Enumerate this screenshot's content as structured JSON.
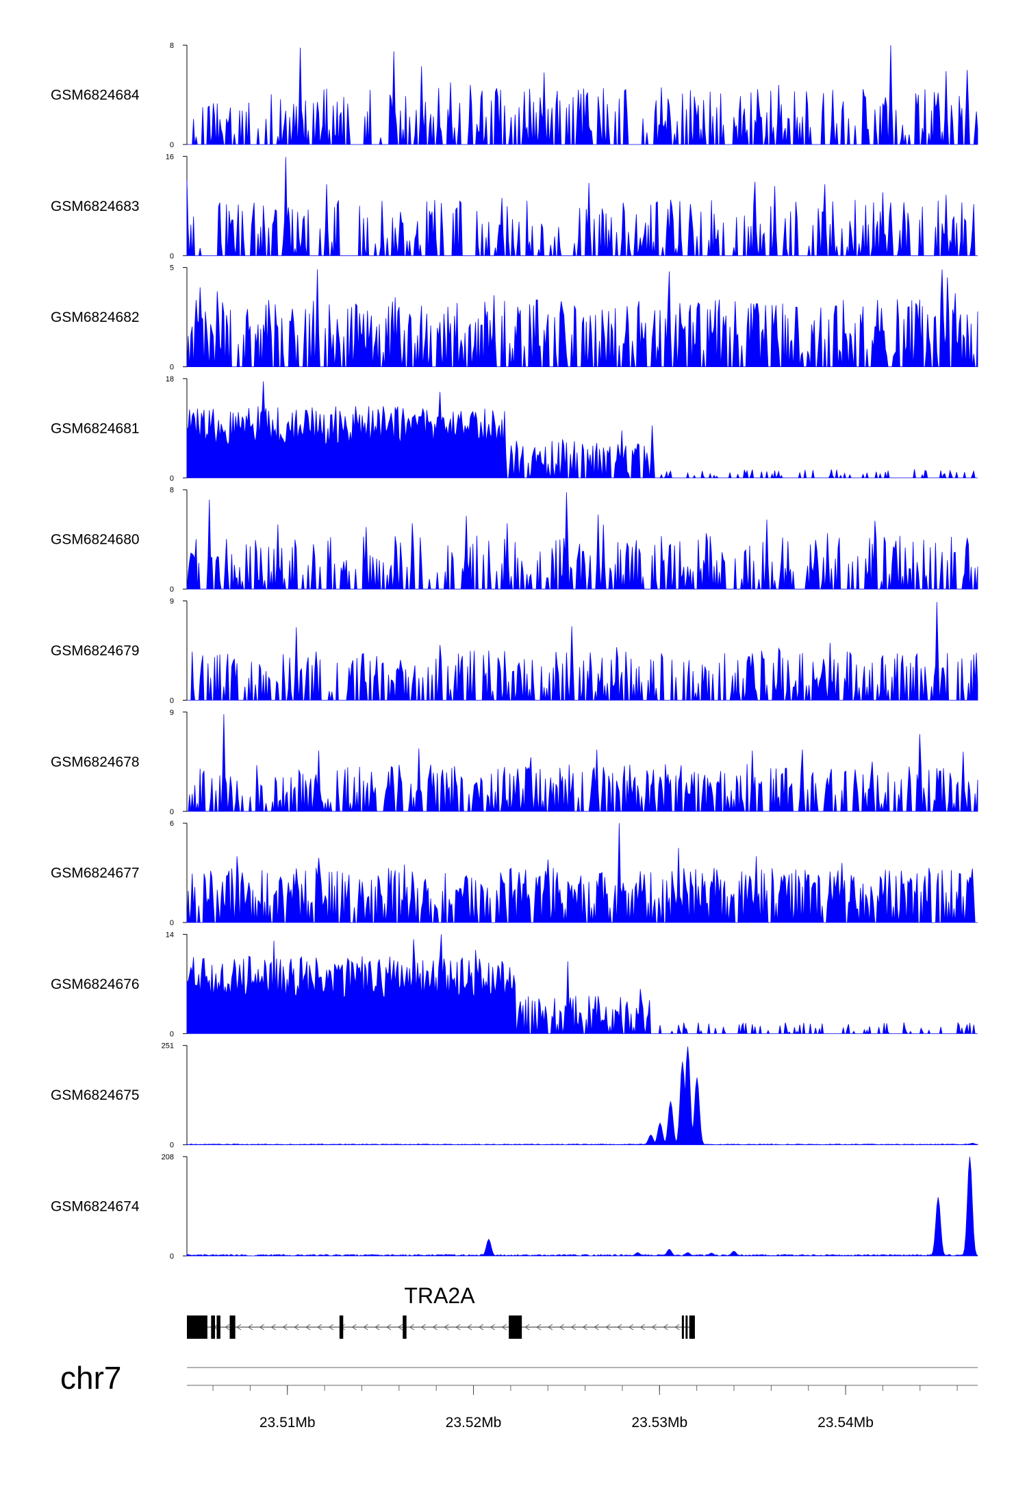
{
  "chart_data": {
    "type": "area",
    "region": {
      "chrom": "chr7",
      "start_mb": 23.5046,
      "end_mb": 23.5471
    },
    "color": "#0000ff",
    "tracks": [
      {
        "name": "GSM6824684",
        "ylim": [
          0,
          8
        ],
        "y_ticks": [
          "0",
          "8"
        ],
        "profile": "sparse",
        "peaks": [
          [
            23.5107,
            7.8
          ],
          [
            23.5157,
            7.5
          ],
          [
            23.5172,
            6.3
          ],
          [
            23.5188,
            5.0
          ],
          [
            23.5198,
            4.8
          ],
          [
            23.5238,
            5.8
          ],
          [
            23.5261,
            4.2
          ],
          [
            23.5301,
            4.6
          ],
          [
            23.5364,
            4.8
          ],
          [
            23.5393,
            4.4
          ],
          [
            23.5424,
            8.2
          ],
          [
            23.5454,
            5.9
          ],
          [
            23.5465,
            6.0
          ]
        ],
        "noise": {
          "density": 0.45,
          "low": 0.5,
          "high": 4.6
        }
      },
      {
        "name": "GSM6824683",
        "ylim": [
          0,
          16
        ],
        "y_ticks": [
          "0",
          "16"
        ],
        "profile": "sparse",
        "peaks": [
          [
            23.5046,
            12.2
          ],
          [
            23.5099,
            15.9
          ],
          [
            23.5121,
            11.5
          ],
          [
            23.5178,
            7.1
          ],
          [
            23.5215,
            9.3
          ],
          [
            23.5262,
            11.7
          ],
          [
            23.5306,
            9.0
          ],
          [
            23.5351,
            11.9
          ],
          [
            23.5362,
            11.2
          ],
          [
            23.5389,
            11.5
          ],
          [
            23.542,
            10.2
          ],
          [
            23.5454,
            9.8
          ],
          [
            23.5468,
            4.3
          ]
        ],
        "noise": {
          "density": 0.38,
          "low": 1.0,
          "high": 9.0
        }
      },
      {
        "name": "GSM6824682",
        "ylim": [
          0,
          5
        ],
        "y_ticks": [
          "0",
          "5"
        ],
        "profile": "sparse",
        "peaks": [
          [
            23.5053,
            4.0
          ],
          [
            23.5062,
            3.8
          ],
          [
            23.5116,
            4.9
          ],
          [
            23.5158,
            3.5
          ],
          [
            23.5211,
            3.6
          ],
          [
            23.5247,
            3.3
          ],
          [
            23.5305,
            4.8
          ],
          [
            23.5311,
            3.2
          ],
          [
            23.5357,
            3.1
          ],
          [
            23.5438,
            3.2
          ],
          [
            23.5452,
            4.9
          ],
          [
            23.5455,
            4.5
          ],
          [
            23.5459,
            3.7
          ]
        ],
        "noise": {
          "density": 0.6,
          "low": 0.5,
          "high": 3.4
        }
      },
      {
        "name": "GSM6824681",
        "ylim": [
          0,
          18
        ],
        "y_ticks": [
          "0",
          "18"
        ],
        "profile": "dense-then-sparse",
        "switch_mb": 23.5216,
        "switch2_mb": 23.5299,
        "peaks": [
          [
            23.506,
            12.5
          ],
          [
            23.5087,
            17.5
          ],
          [
            23.5137,
            13.0
          ],
          [
            23.5182,
            15.6
          ],
          [
            23.5217,
            12.1
          ],
          [
            23.5248,
            7.0
          ],
          [
            23.528,
            8.6
          ],
          [
            23.5296,
            9.5
          ]
        ],
        "noise": {
          "density": 1.0,
          "low": 6.0,
          "high": 13.0
        }
      },
      {
        "name": "GSM6824680",
        "ylim": [
          0,
          8
        ],
        "y_ticks": [
          "0",
          "8"
        ],
        "profile": "sparse",
        "peaks": [
          [
            23.5058,
            7.2
          ],
          [
            23.5095,
            5.2
          ],
          [
            23.5142,
            5.0
          ],
          [
            23.5167,
            5.3
          ],
          [
            23.5196,
            5.9
          ],
          [
            23.5218,
            5.3
          ],
          [
            23.525,
            7.8
          ],
          [
            23.5267,
            6.0
          ],
          [
            23.527,
            5.2
          ],
          [
            23.5305,
            3.5
          ],
          [
            23.5325,
            4.5
          ],
          [
            23.5358,
            5.6
          ],
          [
            23.539,
            4.5
          ],
          [
            23.5416,
            5.5
          ]
        ],
        "noise": {
          "density": 0.45,
          "low": 0.6,
          "high": 4.3
        }
      },
      {
        "name": "GSM6824679",
        "ylim": [
          0,
          9
        ],
        "y_ticks": [
          "0",
          "9"
        ],
        "profile": "sparse",
        "peaks": [
          [
            23.5105,
            6.6
          ],
          [
            23.5182,
            5.0
          ],
          [
            23.5253,
            6.7
          ],
          [
            23.5277,
            4.8
          ],
          [
            23.5364,
            4.7
          ],
          [
            23.5392,
            5.2
          ],
          [
            23.5449,
            8.9
          ],
          [
            23.547,
            4.3
          ]
        ],
        "noise": {
          "density": 0.5,
          "low": 0.7,
          "high": 4.5
        }
      },
      {
        "name": "GSM6824678",
        "ylim": [
          0,
          9
        ],
        "y_ticks": [
          "0",
          "9"
        ],
        "profile": "sparse",
        "peaks": [
          [
            23.5066,
            8.8
          ],
          [
            23.5117,
            5.5
          ],
          [
            23.5171,
            5.7
          ],
          [
            23.5231,
            4.9
          ],
          [
            23.5266,
            5.6
          ],
          [
            23.535,
            5.5
          ],
          [
            23.5377,
            5.6
          ],
          [
            23.5414,
            4.5
          ],
          [
            23.544,
            7.0
          ],
          [
            23.5463,
            5.4
          ]
        ],
        "noise": {
          "density": 0.55,
          "low": 0.7,
          "high": 4.3
        }
      },
      {
        "name": "GSM6824677",
        "ylim": [
          0,
          6
        ],
        "y_ticks": [
          "0",
          "6"
        ],
        "profile": "sparse",
        "peaks": [
          [
            23.5073,
            4.0
          ],
          [
            23.5117,
            3.9
          ],
          [
            23.5163,
            3.5
          ],
          [
            23.524,
            3.8
          ],
          [
            23.5278,
            6.0
          ],
          [
            23.531,
            4.5
          ],
          [
            23.5352,
            4.0
          ],
          [
            23.5398,
            3.6
          ],
          [
            23.5445,
            3.3
          ]
        ],
        "noise": {
          "density": 0.7,
          "low": 0.8,
          "high": 3.3
        }
      },
      {
        "name": "GSM6824676",
        "ylim": [
          0,
          14
        ],
        "y_ticks": [
          "0",
          "14"
        ],
        "profile": "dense-then-sparse",
        "switch_mb": 23.5223,
        "switch2_mb": 23.5295,
        "peaks": [
          [
            23.5072,
            9.3
          ],
          [
            23.5093,
            13.1
          ],
          [
            23.5168,
            13.3
          ],
          [
            23.5183,
            14.0
          ],
          [
            23.5201,
            11.8
          ],
          [
            23.5251,
            10.2
          ],
          [
            23.5267,
            5.3
          ],
          [
            23.529,
            6.3
          ]
        ],
        "noise": {
          "density": 1.0,
          "low": 5.0,
          "high": 11.0
        }
      },
      {
        "name": "GSM6824675",
        "ylim": [
          0,
          251
        ],
        "y_ticks": [
          "0",
          "251"
        ],
        "profile": "peak",
        "peaks": [
          [
            23.5315,
            248
          ],
          [
            23.5312,
            210
          ],
          [
            23.532,
            170
          ],
          [
            23.5306,
            110
          ],
          [
            23.53,
            55
          ],
          [
            23.5295,
            25
          ],
          [
            23.5468,
            4
          ]
        ],
        "noise": {
          "density": 0.0,
          "low": 0,
          "high": 2
        }
      },
      {
        "name": "GSM6824674",
        "ylim": [
          0,
          208
        ],
        "y_ticks": [
          "0",
          "208"
        ],
        "profile": "peak",
        "peaks": [
          [
            23.5467,
            208
          ],
          [
            23.545,
            123
          ],
          [
            23.5208,
            35
          ],
          [
            23.5305,
            14
          ],
          [
            23.534,
            10
          ],
          [
            23.5288,
            7
          ],
          [
            23.5315,
            7
          ],
          [
            23.5328,
            6
          ]
        ],
        "noise": {
          "density": 0.0,
          "low": 0,
          "high": 3
        }
      }
    ],
    "gene": {
      "name": "TRA2A",
      "strand": "-",
      "start_mb": 23.5046,
      "end_mb": 23.5318,
      "exons_mb": [
        [
          23.5046,
          23.5057
        ],
        [
          23.5059,
          23.506
        ],
        [
          23.506,
          23.5061
        ],
        [
          23.5062,
          23.5064
        ],
        [
          23.5069,
          23.5072
        ],
        [
          23.5128,
          23.513
        ],
        [
          23.5162,
          23.5164
        ],
        [
          23.5219,
          23.5226
        ],
        [
          23.5312,
          23.5313
        ],
        [
          23.5314,
          23.5315
        ],
        [
          23.5316,
          23.5319
        ]
      ]
    },
    "x_axis": {
      "ticks_mb": [
        23.51,
        23.52,
        23.53,
        23.54
      ],
      "tick_labels": [
        "23.51Mb",
        "23.52Mb",
        "23.53Mb",
        "23.54Mb"
      ],
      "minor_step_mb": 0.002
    },
    "chrom_label": "chr7"
  }
}
